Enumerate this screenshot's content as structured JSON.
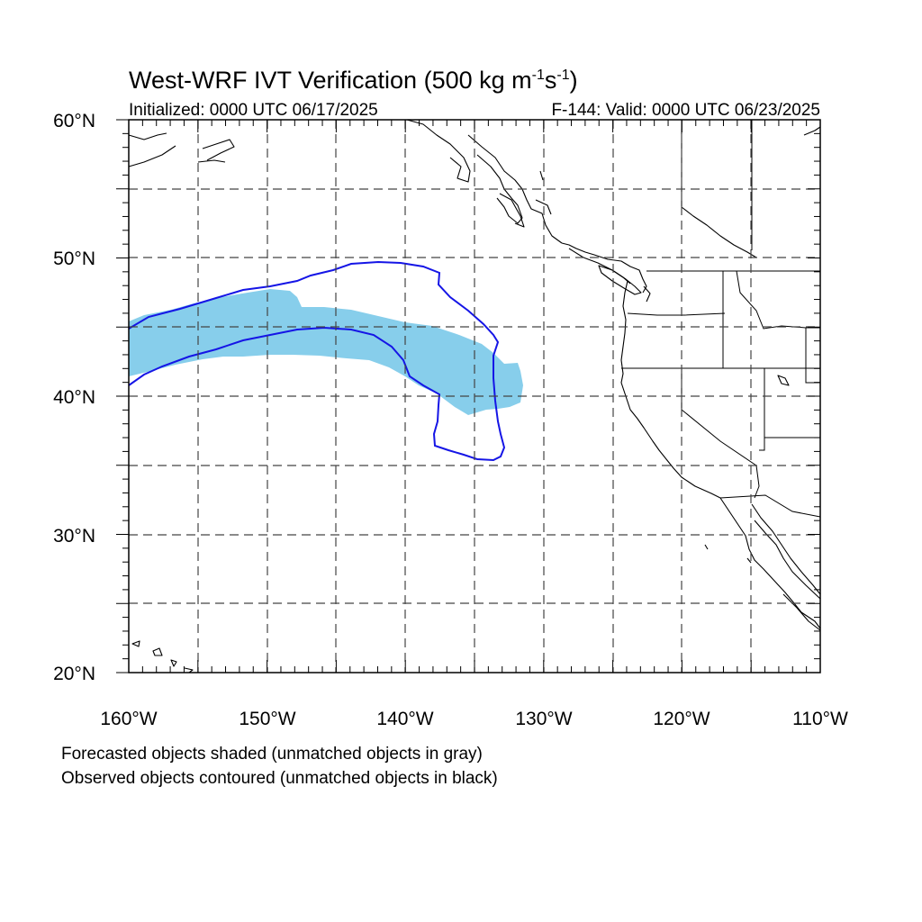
{
  "title": {
    "main": "West-WRF IVT Verification (500 kg m",
    "exp1": "-1",
    "mid": "s",
    "exp2": "-1",
    "end": ")"
  },
  "subtitle": {
    "left": "Initialized: 0000 UTC 06/17/2025",
    "right": "F-144: Valid: 0000 UTC 06/23/2025"
  },
  "axes": {
    "lon_labels": [
      "160°W",
      "150°W",
      "140°W",
      "130°W",
      "120°W",
      "110°W"
    ],
    "lat_labels": [
      "60°N",
      "50°N",
      "40°N",
      "30°N",
      "20°N"
    ],
    "lon_range": [
      -160,
      -110
    ],
    "lat_range": [
      20,
      60
    ],
    "grid": "dashed every 5°"
  },
  "footnotes": {
    "line1": "Forecasted objects shaded (unmatched objects in gray)",
    "line2": "Observed objects contoured (unmatched objects in black)"
  },
  "colors": {
    "forecast_fill": "#87ceeb",
    "observed_contour": "#1515e6",
    "coastline": "#000000",
    "grid": "#444444"
  },
  "objects": {
    "forecast_shaded": {
      "type": "forecast",
      "matched": true
    },
    "observed_contour": {
      "type": "observed",
      "matched": true
    }
  }
}
